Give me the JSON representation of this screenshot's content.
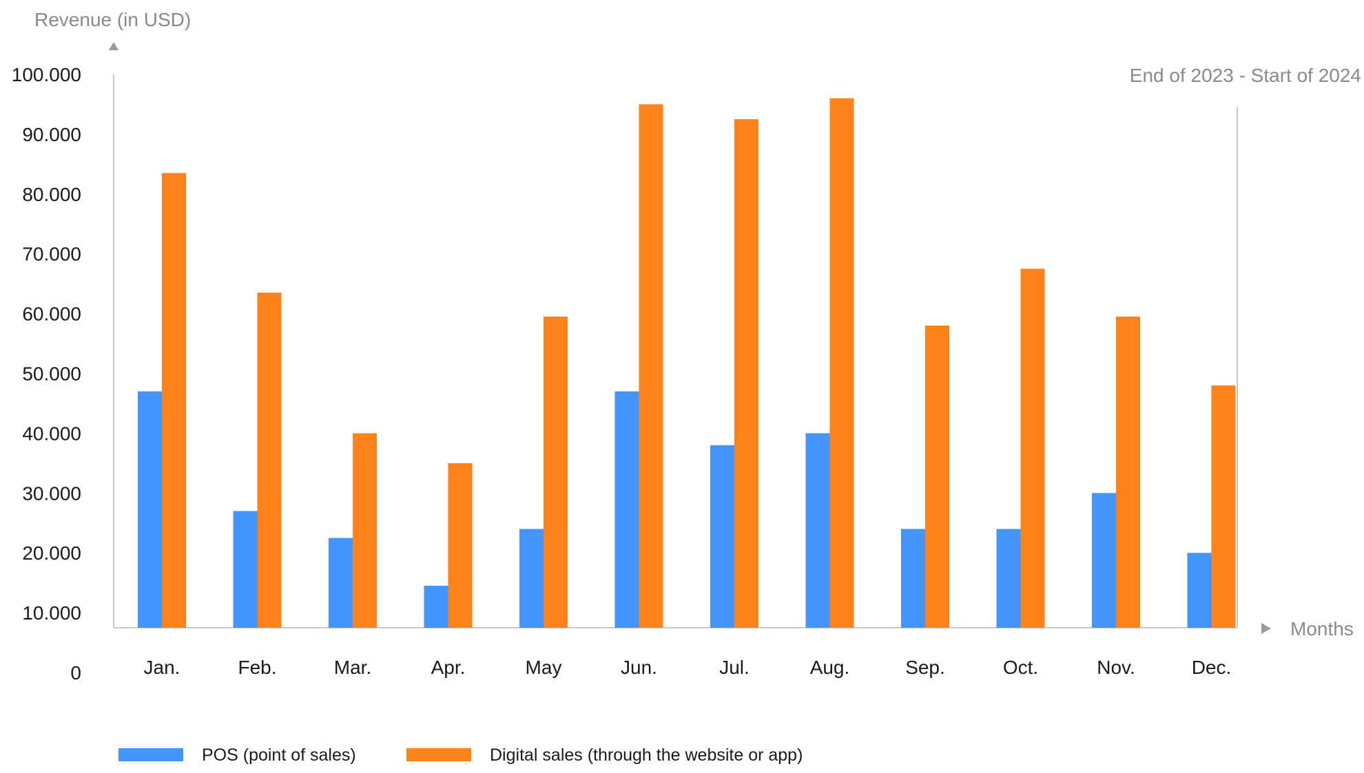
{
  "chart_data": {
    "type": "bar",
    "title": "",
    "subtitle": "End of 2023 - Start of 2024",
    "ylabel": "Revenue (in USD)",
    "xlabel": "Months",
    "ylim": [
      0,
      100000
    ],
    "yticks": [
      0,
      10000,
      20000,
      30000,
      40000,
      50000,
      60000,
      70000,
      80000,
      90000,
      100000
    ],
    "ytick_labels": [
      "0",
      "10.000",
      "20.000",
      "30.000",
      "40.000",
      "50.000",
      "60.000",
      "70.000",
      "80.000",
      "90.000",
      "100.000"
    ],
    "categories": [
      "Jan.",
      "Feb.",
      "Mar.",
      "Apr.",
      "May",
      "Jun.",
      "Jul.",
      "Aug.",
      "Sep.",
      "Oct.",
      "Nov.",
      "Dec."
    ],
    "series": [
      {
        "name": "POS (point of sales)",
        "color": "#4394fb",
        "values": [
          47000,
          27000,
          22500,
          14500,
          24000,
          47000,
          38000,
          40000,
          24000,
          24000,
          30000,
          20000
        ]
      },
      {
        "name": "Digital sales (through the website or app)",
        "color": "#fc8219",
        "values": [
          83500,
          63500,
          40000,
          35000,
          59500,
          95000,
          92500,
          96000,
          58000,
          67500,
          59500,
          48000
        ]
      }
    ],
    "grid": false,
    "legend": "bottom-left"
  }
}
